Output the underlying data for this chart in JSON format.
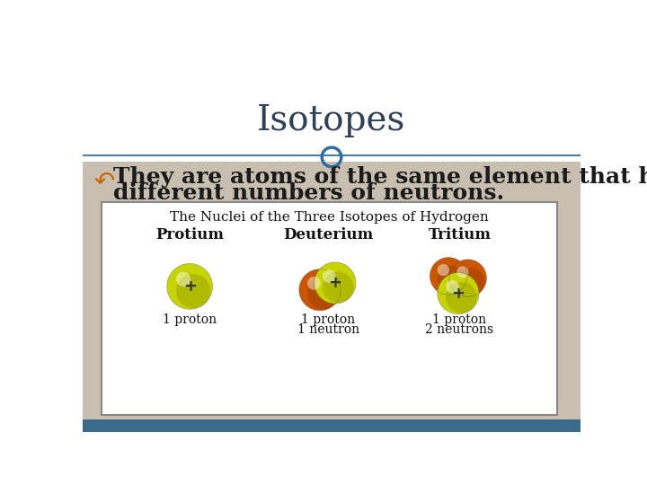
{
  "title": "Isotopes",
  "title_fontsize": 28,
  "title_color": "#2E4057",
  "bullet_fontsize": 18,
  "bullet_color": "#1a1a1a",
  "bg_top": "#ffffff",
  "bg_bottom": "#c8bfb0",
  "header_line_color": "#4a7fa5",
  "circle_color": "#2E6DA4",
  "image_caption": "The Nuclei of the Three Isotopes of Hydrogen",
  "isotope_labels": [
    "Protium",
    "Deuterium",
    "Tritium"
  ],
  "proton_labels_1": [
    "1 proton",
    "1 proton",
    "1 proton"
  ],
  "proton_labels_2": [
    "",
    "1 neutron",
    "2 neutrons"
  ],
  "proton_color": "#c8d400",
  "neutron_color": "#cc5500",
  "footer_color": "#3a6b8a",
  "image_box_bg": "#ffffff",
  "image_box_border": "#888888",
  "bullet_symbol": "↶",
  "bullet_line1": "They are atoms of the same element that have",
  "bullet_line2": "different numbers of neutrons."
}
